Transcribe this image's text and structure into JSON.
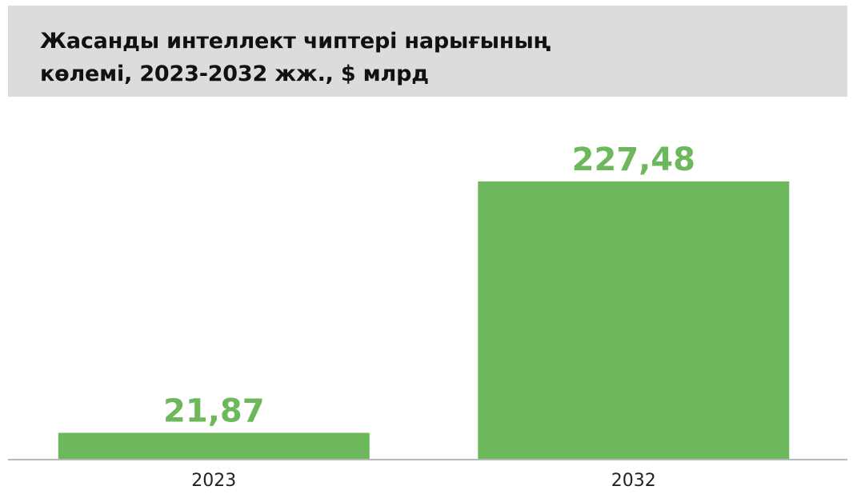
{
  "chart_data": {
    "type": "bar",
    "title": "Жасанды интеллект чиптері нарығының көлемі, 2023-2032 жж., $ млрд",
    "categories": [
      "2023",
      "2032"
    ],
    "values": [
      21.87,
      227.48
    ],
    "value_labels": [
      "21,87",
      "227,48"
    ],
    "xlabel": "",
    "ylabel": "",
    "ylim": [
      0,
      250
    ],
    "grid": false,
    "legend": "none"
  },
  "colors": {
    "bar": "#6db85c",
    "value_label": "#6db85c",
    "title_band": "#dcdcdc",
    "baseline": "#b8b8b8",
    "tick_label": "#222222"
  }
}
